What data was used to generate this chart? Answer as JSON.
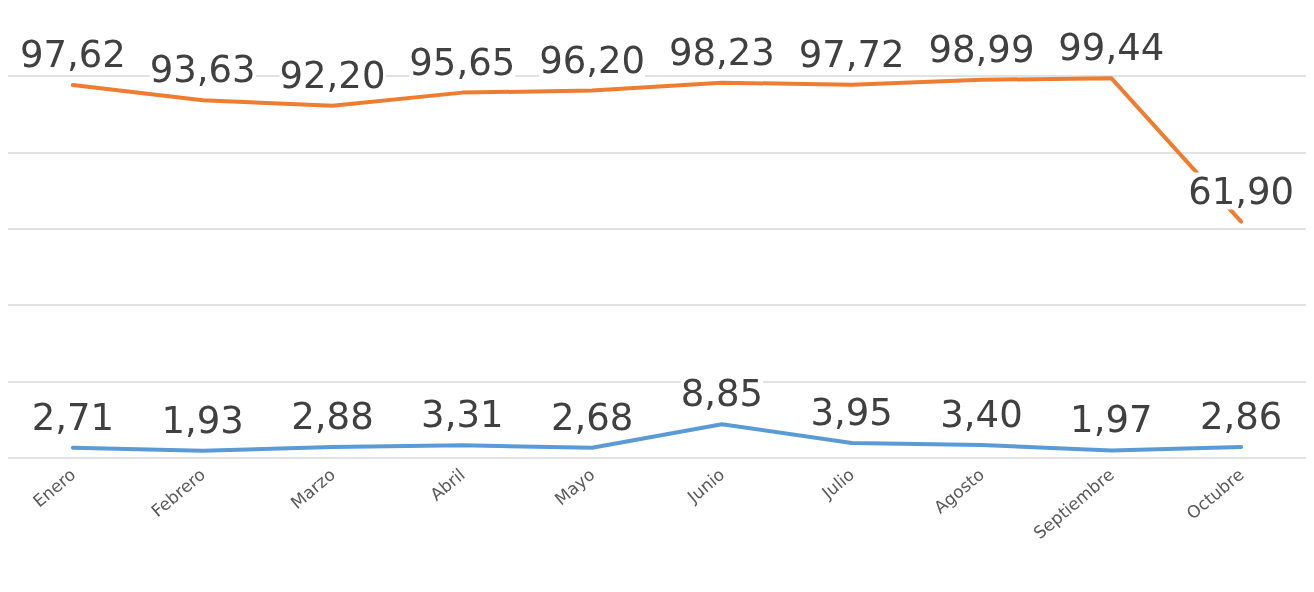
{
  "chart_data": {
    "type": "line",
    "categories": [
      "Enero",
      "Febrero",
      "Marzo",
      "Abril",
      "Mayo",
      "Junio",
      "Julio",
      "Agosto",
      "Septiembre",
      "Octubre"
    ],
    "series": [
      {
        "color": "#5b9bd5",
        "values": [
          2.71,
          1.93,
          2.88,
          3.31,
          2.68,
          8.85,
          3.95,
          3.4,
          1.97,
          2.86
        ],
        "value_labels": [
          "2,71",
          "1,93",
          "2,88",
          "3,31",
          "2,68",
          "8,85",
          "3,95",
          "3,40",
          "1,97",
          "2,86"
        ]
      },
      {
        "color": "#ed7d31",
        "values": [
          97.62,
          93.63,
          92.2,
          95.65,
          96.2,
          98.23,
          97.72,
          98.99,
          99.44,
          61.9
        ],
        "value_labels": [
          "97,62",
          "93,63",
          "92,20",
          "95,65",
          "96,20",
          "98,23",
          "97,72",
          "98,99",
          "99,44",
          "61,90"
        ]
      }
    ],
    "ylim": [
      0,
      100
    ],
    "yticks": [
      {
        "value": 0,
        "label": null
      },
      {
        "value": 20,
        "label": null
      },
      {
        "value": 40,
        "label": null
      },
      {
        "value": 60,
        "label": null
      },
      {
        "value": 80,
        "label": null
      },
      {
        "value": 100,
        "label": null
      }
    ],
    "grid": "y",
    "tick_labels": "x",
    "marker": "none",
    "line_style": "solid"
  }
}
